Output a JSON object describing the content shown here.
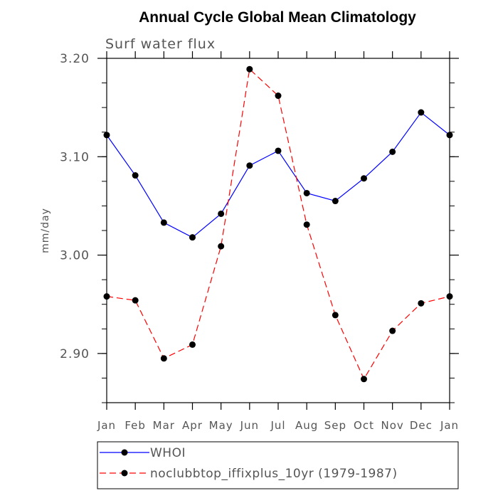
{
  "chart_data": {
    "type": "line",
    "title": "Annual Cycle Global Mean Climatology",
    "subtitle": "Surf water flux",
    "xlabel": "",
    "ylabel": "mm/day",
    "categories": [
      "Jan",
      "Feb",
      "Mar",
      "Apr",
      "May",
      "Jun",
      "Jul",
      "Aug",
      "Sep",
      "Oct",
      "Nov",
      "Dec",
      "Jan"
    ],
    "ylim": [
      2.85,
      3.2
    ],
    "yticks": [
      {
        "value": 2.9,
        "label": "2.90"
      },
      {
        "value": 3.0,
        "label": "3.00"
      },
      {
        "value": 3.1,
        "label": "3.10"
      },
      {
        "value": 3.2,
        "label": "3.20"
      }
    ],
    "yminor_step": 0.025,
    "grid": false,
    "legend_position": "bottom",
    "series": [
      {
        "name": "WHOI",
        "color": "#0000ff",
        "dash": "solid",
        "values": [
          3.122,
          3.081,
          3.033,
          3.018,
          3.042,
          3.091,
          3.106,
          3.063,
          3.055,
          3.078,
          3.105,
          3.145,
          3.122
        ]
      },
      {
        "name": "noclubbtop_iffixplus_10yr (1979-1987)",
        "color": "#ff0000",
        "dash": "dashed",
        "values": [
          2.958,
          2.954,
          2.895,
          2.909,
          3.009,
          3.189,
          3.162,
          3.031,
          2.939,
          2.874,
          2.923,
          2.951,
          2.958
        ]
      }
    ]
  }
}
